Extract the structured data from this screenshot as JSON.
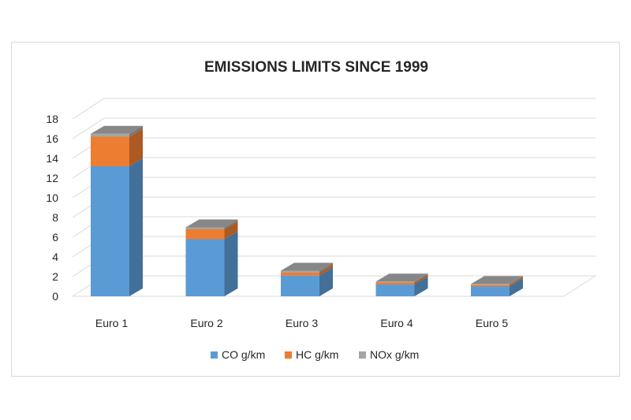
{
  "chart_data": {
    "type": "bar",
    "stacked": true,
    "style": "3d-column",
    "title": "EMISSIONS LIMITS SINCE 1999",
    "xlabel": "",
    "ylabel": "",
    "ylim": [
      0,
      18
    ],
    "yticks": [
      0,
      2,
      4,
      6,
      8,
      10,
      12,
      14,
      16,
      18
    ],
    "grid": true,
    "legend_position": "bottom",
    "categories": [
      "Euro 1",
      "Euro 2",
      "Euro 3",
      "Euro 4",
      "Euro 5"
    ],
    "series": [
      {
        "name": "CO g/km",
        "color": "#5b9bd5",
        "values": [
          13.2,
          5.8,
          2.1,
          1.2,
          1.0
        ]
      },
      {
        "name": "HC g/km",
        "color": "#ed7d31",
        "values": [
          3.0,
          1.0,
          0.3,
          0.2,
          0.15
        ]
      },
      {
        "name": "NOx g/km",
        "color": "#a5a5a5",
        "values": [
          0.3,
          0.2,
          0.2,
          0.1,
          0.1
        ]
      }
    ]
  }
}
